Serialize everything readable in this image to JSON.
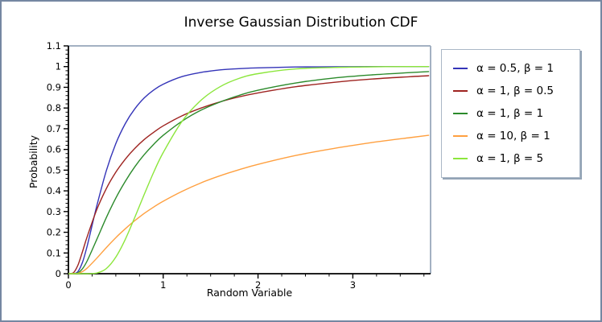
{
  "window": {
    "background": "#ffffff",
    "border_color": "#7587a2"
  },
  "chart_data": {
    "type": "line",
    "title": "Inverse Gaussian Distribution CDF",
    "xlabel": "Random Variable",
    "ylabel": "Probability",
    "xlim": [
      0,
      3.82
    ],
    "ylim": [
      0,
      1.1
    ],
    "grid": false,
    "legend_position": "right-outside",
    "axis_color": "#000000",
    "box_line_color": "#a3b1c2",
    "x_tick_labels": [
      "0",
      "1",
      "2",
      "3"
    ],
    "x_major_ticks": [
      0,
      1,
      2,
      3
    ],
    "x_minor_step": 0.25,
    "y_tick_labels": [
      "0",
      "0.1",
      "0.2",
      "0.3",
      "0.4",
      "0.5",
      "0.6",
      "0.7",
      "0.8",
      "0.9",
      "1",
      "1.1"
    ],
    "y_major_ticks": [
      0,
      0.1,
      0.2,
      0.3,
      0.4,
      0.5,
      0.6,
      0.7,
      0.8,
      0.9,
      1.0,
      1.1
    ],
    "y_minor_step": 0.02,
    "x": [
      0,
      0.05,
      0.1,
      0.15,
      0.2,
      0.3,
      0.4,
      0.5,
      0.6,
      0.7,
      0.8,
      0.9,
      1.0,
      1.2,
      1.4,
      1.6,
      1.8,
      2.0,
      2.4,
      2.8,
      3.2,
      3.6,
      3.8
    ],
    "series": [
      {
        "name": "α = 0.5, β = 1",
        "color": "#3434b8",
        "values": [
          0,
          0.0001,
          0.01,
          0.057,
          0.138,
          0.328,
          0.497,
          0.628,
          0.725,
          0.796,
          0.849,
          0.887,
          0.915,
          0.952,
          0.972,
          0.984,
          0.99,
          0.994,
          0.998,
          0.999,
          1.0,
          1.0,
          1.0
        ]
      },
      {
        "name": "α = 1, β = 0.5",
        "color": "#9e2320",
        "values": [
          0,
          0.003,
          0.041,
          0.109,
          0.182,
          0.31,
          0.411,
          0.49,
          0.553,
          0.605,
          0.648,
          0.683,
          0.714,
          0.763,
          0.8,
          0.83,
          0.854,
          0.873,
          0.903,
          0.924,
          0.94,
          0.951,
          0.956
        ]
      },
      {
        "name": "α = 1, β = 1",
        "color": "#2b8a2b",
        "values": [
          0,
          2e-05,
          0.004,
          0.025,
          0.064,
          0.166,
          0.271,
          0.365,
          0.446,
          0.516,
          0.575,
          0.625,
          0.668,
          0.737,
          0.79,
          0.829,
          0.861,
          0.886,
          0.921,
          0.945,
          0.96,
          0.971,
          0.976
        ]
      },
      {
        "name": "α = 10, β = 1",
        "color": "#ffa040",
        "values": [
          0,
          1e-05,
          0.002,
          0.011,
          0.028,
          0.075,
          0.126,
          0.174,
          0.217,
          0.256,
          0.291,
          0.322,
          0.35,
          0.398,
          0.439,
          0.473,
          0.502,
          0.528,
          0.571,
          0.605,
          0.633,
          0.657,
          0.668
        ]
      },
      {
        "name": "α = 1, β = 5",
        "color": "#8ce63c",
        "values": [
          0,
          0,
          0,
          0,
          0.0001,
          0.003,
          0.025,
          0.08,
          0.166,
          0.272,
          0.383,
          0.49,
          0.585,
          0.737,
          0.838,
          0.903,
          0.943,
          0.966,
          0.989,
          0.996,
          0.999,
          1.0,
          1.0
        ]
      }
    ]
  }
}
